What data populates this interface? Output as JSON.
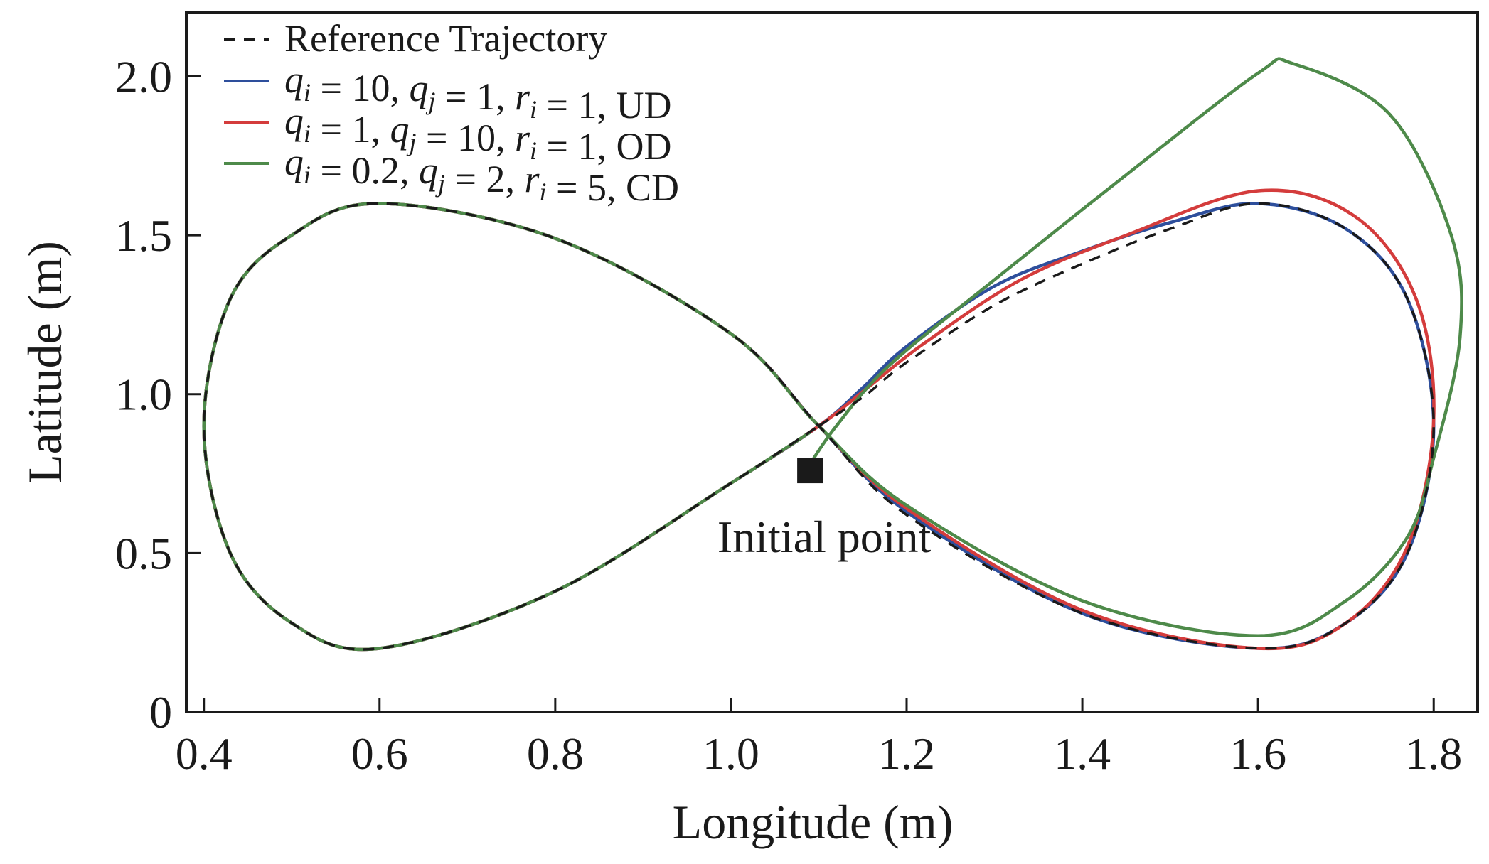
{
  "chart_data": {
    "type": "line",
    "xlabel": "Longitude (m)",
    "ylabel": "Latitude (m)",
    "xlim": [
      0.38,
      1.85
    ],
    "ylim": [
      0,
      2.2
    ],
    "xticks": [
      0.4,
      0.6,
      0.8,
      1.0,
      1.2,
      1.4,
      1.6,
      1.8
    ],
    "xtick_labels": [
      "0.4",
      "0.6",
      "0.8",
      "1.0",
      "1.2",
      "1.4",
      "1.6",
      "1.8"
    ],
    "yticks": [
      0,
      0.5,
      1.0,
      1.5,
      2.0
    ],
    "ytick_labels": [
      "0",
      "0.5",
      "1.0",
      "1.5",
      "2.0"
    ],
    "grid": false,
    "legend_position": "top-left",
    "legend": [
      {
        "label": "Reference Trajectory",
        "color": "#1a1a1a",
        "style": "dashed"
      },
      {
        "label": "q_i = 10, q_j = 1, r_i = 1, UD",
        "color": "#2e4f9c",
        "style": "solid"
      },
      {
        "label": "q_i = 1, q_j = 10, r_i = 1, OD",
        "color": "#d43c3c",
        "style": "solid"
      },
      {
        "label": "q_i = 0.2, q_j = 2, r_i = 5, CD",
        "color": "#4e8a4a",
        "style": "solid"
      }
    ],
    "series": [
      {
        "name": "Reference Trajectory",
        "color": "#1a1a1a",
        "style": "dashed",
        "points": [
          [
            1.1,
            0.9
          ],
          [
            1.15,
            0.99
          ],
          [
            1.2,
            1.1
          ],
          [
            1.3,
            1.28
          ],
          [
            1.4,
            1.41
          ],
          [
            1.5,
            1.52
          ],
          [
            1.6,
            1.6
          ],
          [
            1.7,
            1.52
          ],
          [
            1.77,
            1.3
          ],
          [
            1.8,
            0.9
          ],
          [
            1.77,
            0.5
          ],
          [
            1.7,
            0.28
          ],
          [
            1.6,
            0.2
          ],
          [
            1.4,
            0.31
          ],
          [
            1.2,
            0.62
          ],
          [
            1.1,
            0.9
          ],
          [
            1.0,
            1.19
          ],
          [
            0.8,
            1.49
          ],
          [
            0.6,
            1.6
          ],
          [
            0.5,
            1.5
          ],
          [
            0.43,
            1.3
          ],
          [
            0.4,
            0.9
          ],
          [
            0.43,
            0.5
          ],
          [
            0.5,
            0.28
          ],
          [
            0.6,
            0.2
          ],
          [
            0.8,
            0.38
          ],
          [
            1.0,
            0.72
          ],
          [
            1.1,
            0.9
          ]
        ]
      },
      {
        "name": "UD",
        "color": "#2e4f9c",
        "style": "solid",
        "points": [
          [
            1.1,
            0.9
          ],
          [
            1.15,
            1.02
          ],
          [
            1.2,
            1.15
          ],
          [
            1.3,
            1.34
          ],
          [
            1.4,
            1.45
          ],
          [
            1.5,
            1.54
          ],
          [
            1.6,
            1.6
          ],
          [
            1.7,
            1.52
          ],
          [
            1.77,
            1.3
          ],
          [
            1.8,
            0.9
          ],
          [
            1.77,
            0.5
          ],
          [
            1.7,
            0.28
          ],
          [
            1.6,
            0.2
          ],
          [
            1.4,
            0.31
          ],
          [
            1.2,
            0.63
          ],
          [
            1.1,
            0.9
          ],
          [
            1.0,
            1.19
          ],
          [
            0.8,
            1.49
          ],
          [
            0.6,
            1.6
          ],
          [
            0.5,
            1.5
          ],
          [
            0.43,
            1.3
          ],
          [
            0.4,
            0.9
          ],
          [
            0.43,
            0.5
          ],
          [
            0.5,
            0.28
          ],
          [
            0.6,
            0.2
          ],
          [
            0.8,
            0.38
          ],
          [
            1.0,
            0.72
          ],
          [
            1.1,
            0.9
          ]
        ]
      },
      {
        "name": "OD",
        "color": "#d43c3c",
        "style": "solid",
        "points": [
          [
            1.1,
            0.9
          ],
          [
            1.16,
            1.03
          ],
          [
            1.22,
            1.16
          ],
          [
            1.33,
            1.36
          ],
          [
            1.45,
            1.5
          ],
          [
            1.6,
            1.64
          ],
          [
            1.71,
            1.56
          ],
          [
            1.78,
            1.3
          ],
          [
            1.8,
            0.92
          ],
          [
            1.77,
            0.52
          ],
          [
            1.7,
            0.28
          ],
          [
            1.6,
            0.2
          ],
          [
            1.4,
            0.32
          ],
          [
            1.2,
            0.64
          ],
          [
            1.1,
            0.9
          ],
          [
            1.0,
            1.19
          ],
          [
            0.8,
            1.49
          ],
          [
            0.6,
            1.6
          ],
          [
            0.5,
            1.5
          ],
          [
            0.43,
            1.3
          ],
          [
            0.4,
            0.9
          ],
          [
            0.43,
            0.5
          ],
          [
            0.5,
            0.28
          ],
          [
            0.6,
            0.2
          ],
          [
            0.8,
            0.38
          ],
          [
            1.0,
            0.72
          ],
          [
            1.1,
            0.9
          ]
        ]
      },
      {
        "name": "CD",
        "color": "#4e8a4a",
        "style": "solid",
        "points": [
          [
            1.09,
            0.78
          ],
          [
            1.12,
            0.9
          ],
          [
            1.18,
            1.09
          ],
          [
            1.3,
            1.36
          ],
          [
            1.45,
            1.69
          ],
          [
            1.6,
            2.01
          ],
          [
            1.64,
            2.04
          ],
          [
            1.75,
            1.88
          ],
          [
            1.82,
            1.5
          ],
          [
            1.83,
            1.18
          ],
          [
            1.8,
            0.8
          ],
          [
            1.77,
            0.55
          ],
          [
            1.7,
            0.35
          ],
          [
            1.6,
            0.24
          ],
          [
            1.4,
            0.35
          ],
          [
            1.2,
            0.65
          ],
          [
            1.1,
            0.9
          ],
          [
            1.0,
            1.19
          ],
          [
            0.8,
            1.49
          ],
          [
            0.6,
            1.6
          ],
          [
            0.5,
            1.5
          ],
          [
            0.43,
            1.3
          ],
          [
            0.4,
            0.9
          ],
          [
            0.43,
            0.5
          ],
          [
            0.5,
            0.28
          ],
          [
            0.6,
            0.2
          ],
          [
            0.8,
            0.38
          ],
          [
            1.0,
            0.72
          ],
          [
            1.09,
            0.88
          ]
        ]
      }
    ],
    "annotations": [
      {
        "text": "Initial point",
        "marker": "square",
        "point": [
          1.09,
          0.76
        ]
      }
    ]
  }
}
